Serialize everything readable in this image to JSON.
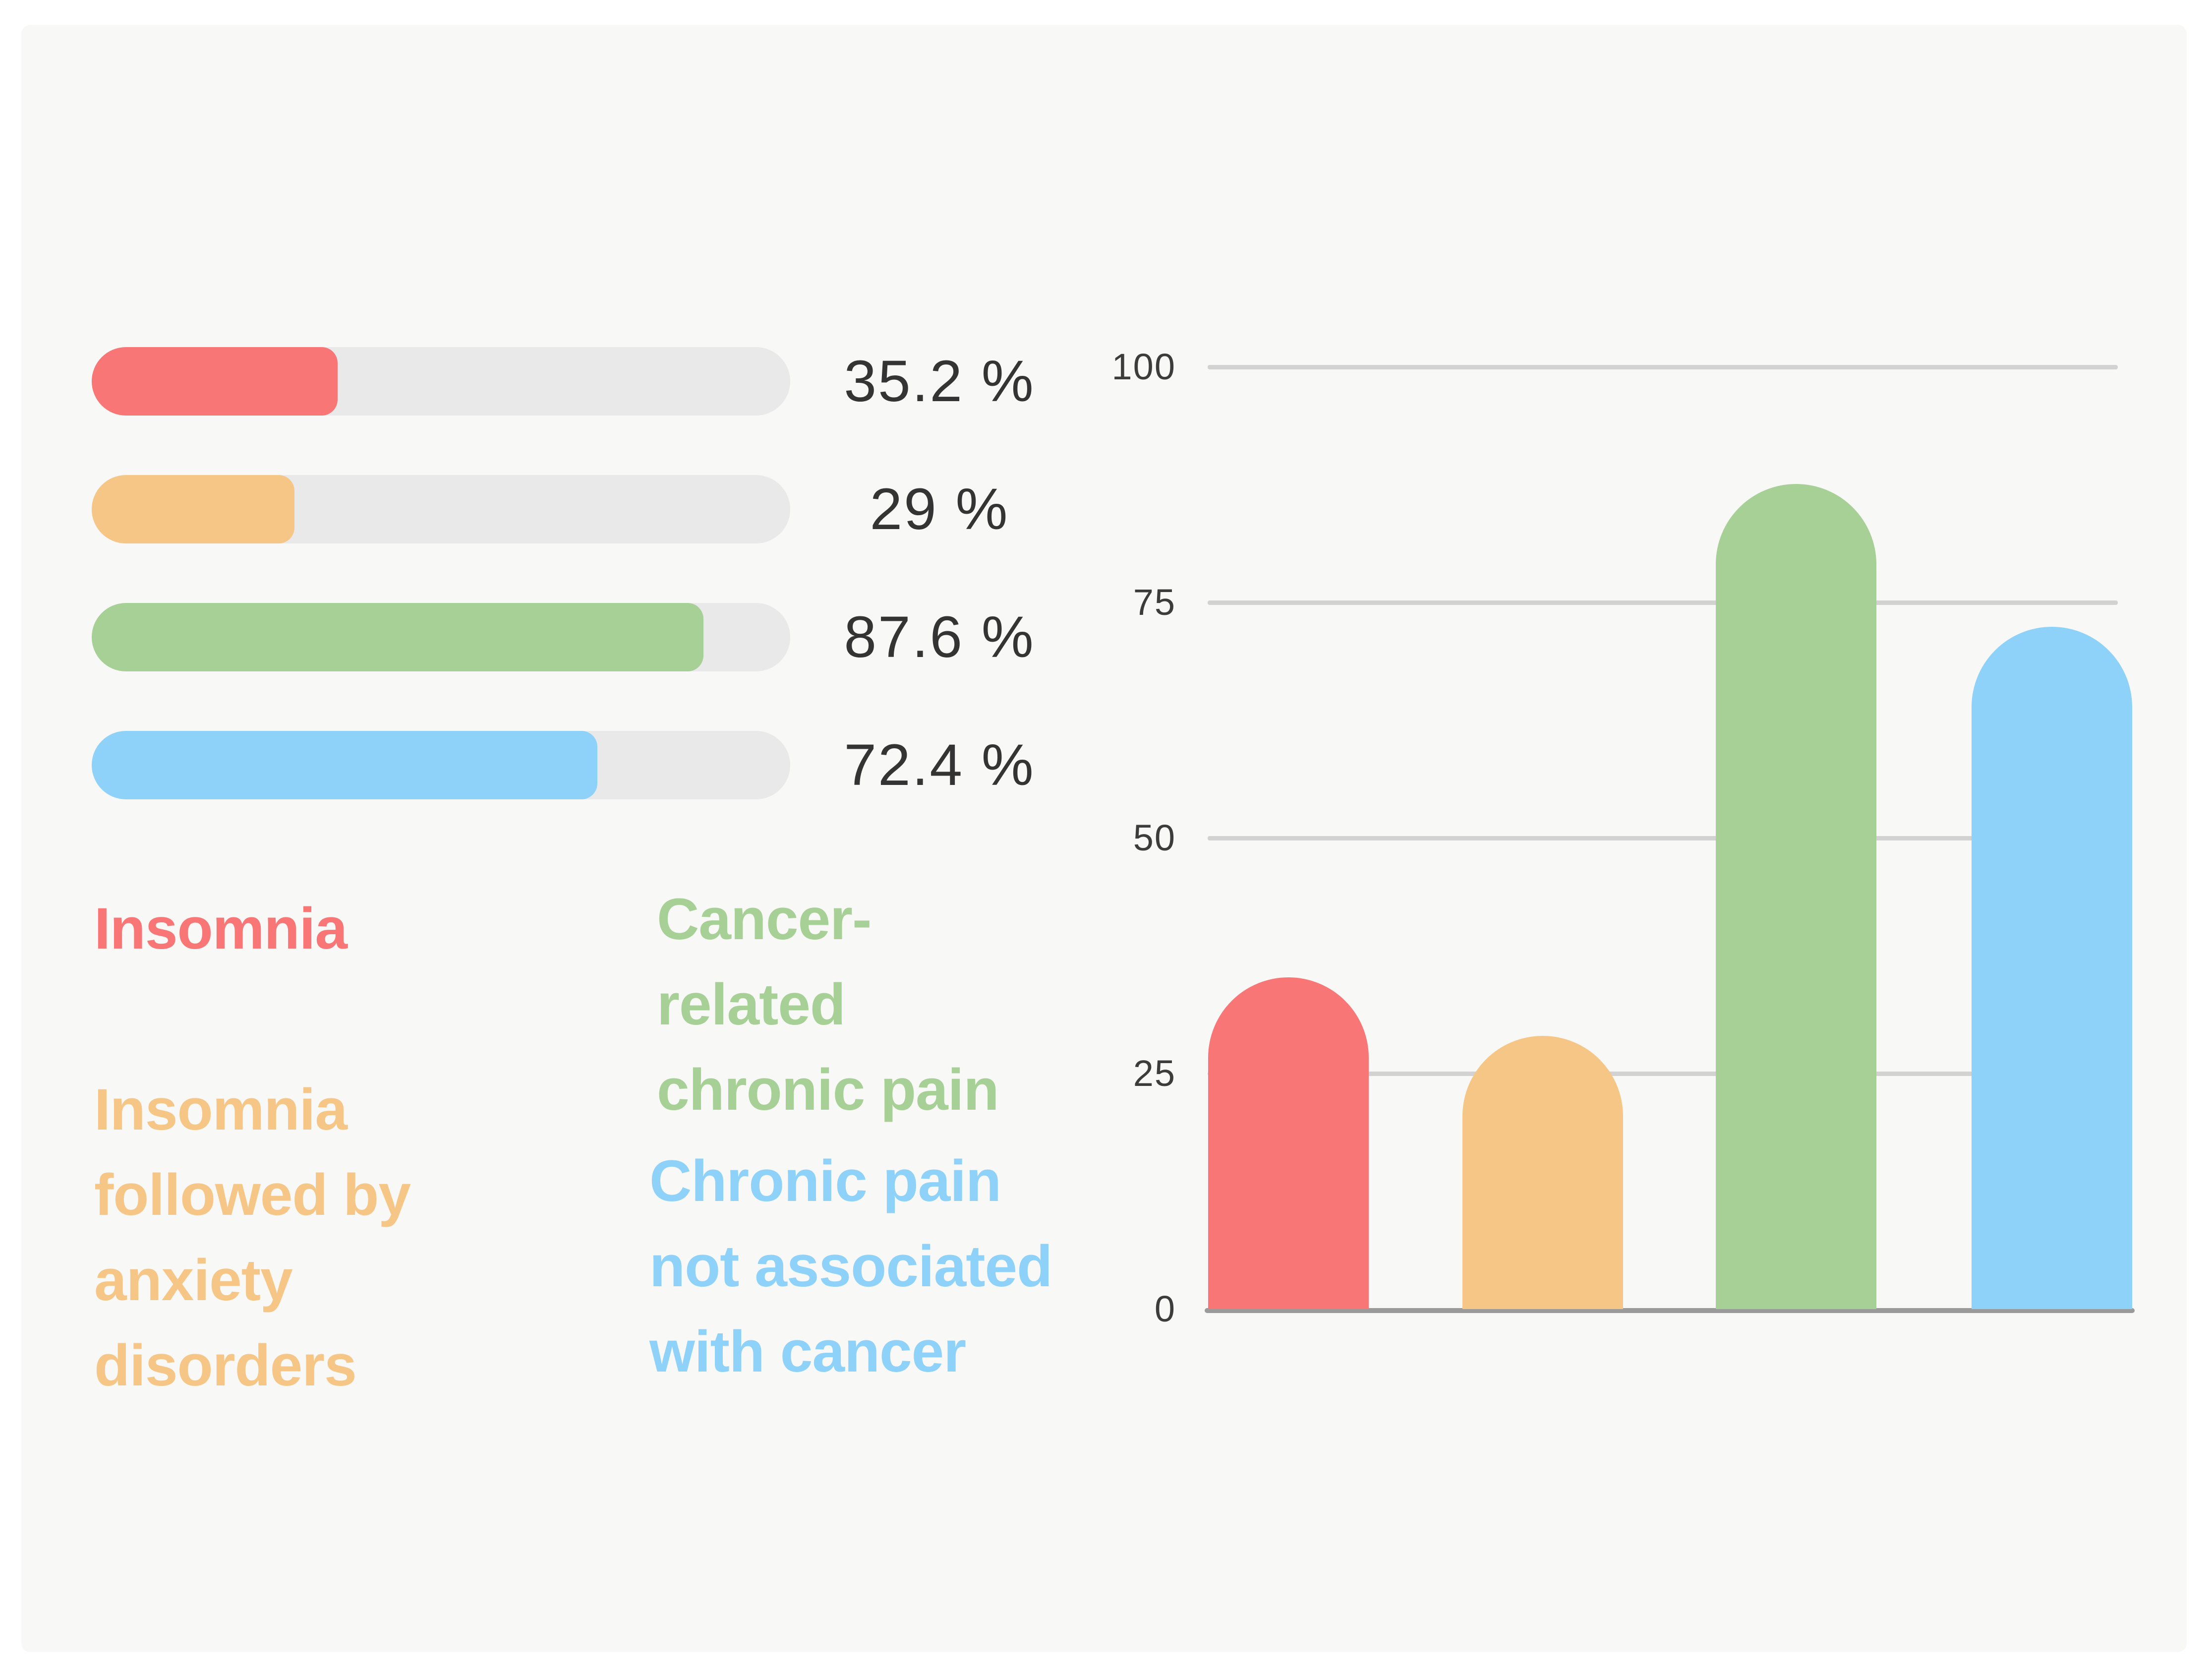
{
  "page": {
    "background_color": "#ffffff",
    "panel_color": "#f8f8f7",
    "track_color": "#e9e9e9",
    "gridline_color": "#d2d2d2",
    "axis_color": "#9a9a9a",
    "number_text_color": "#343434",
    "tick_text_color": "#3c3c3c"
  },
  "progress_chart": {
    "items": [
      {
        "id": "insomnia",
        "value": 35.2,
        "percent_label": "35.2 %",
        "color": "#f87676"
      },
      {
        "id": "insomnia-anxiety",
        "value": 29,
        "percent_label": "29 %",
        "color": "#f6c686"
      },
      {
        "id": "cancer-pain",
        "value": 87.6,
        "percent_label": "87.6 %",
        "color": "#a7d096"
      },
      {
        "id": "non-cancer-pain",
        "value": 72.4,
        "percent_label": "72.4 %",
        "color": "#8fd2f9"
      }
    ]
  },
  "legend": {
    "items": [
      {
        "id": "insomnia",
        "lines": [
          "Insomnia"
        ],
        "color": "#f87676"
      },
      {
        "id": "cancer-pain",
        "lines": [
          "Cancer-",
          "related",
          "chronic pain"
        ],
        "color": "#a7d096"
      },
      {
        "id": "insomnia-anxiety",
        "lines": [
          "Insomnia",
          "followed by",
          "anxiety",
          "disorders"
        ],
        "color": "#f6c686"
      },
      {
        "id": "non-cancer-pain",
        "lines": [
          "Chronic pain",
          "not associated",
          "with cancer"
        ],
        "color": "#8fd2f9"
      }
    ]
  },
  "chart_data": [
    {
      "type": "bar",
      "orientation": "horizontal",
      "categories": [
        "Insomnia",
        "Insomnia followed by anxiety disorders",
        "Cancer-related chronic pain",
        "Chronic pain not associated with cancer"
      ],
      "values": [
        35.2,
        29,
        87.6,
        72.4
      ],
      "data_labels": [
        "35.2 %",
        "29 %",
        "87.6 %",
        "72.4 %"
      ],
      "colors": [
        "#f87676",
        "#f6c686",
        "#a7d096",
        "#8fd2f9"
      ],
      "title": "",
      "xlabel": "",
      "ylabel": "",
      "xlim": [
        0,
        100
      ],
      "grid": false,
      "legend_position": "below-as-colored-text"
    },
    {
      "type": "bar",
      "orientation": "vertical",
      "categories": [
        "Insomnia",
        "Insomnia followed by anxiety disorders",
        "Cancer-related chronic pain",
        "Chronic pain not associated with cancer"
      ],
      "values": [
        35.2,
        29,
        87.6,
        72.4
      ],
      "colors": [
        "#f87676",
        "#f6c686",
        "#a7d096",
        "#8fd2f9"
      ],
      "title": "",
      "xlabel": "",
      "ylabel": "",
      "ylim": [
        0,
        100
      ],
      "y_ticks": [
        100,
        75,
        50,
        25,
        0
      ],
      "grid": true,
      "legend_position": "none",
      "bar_style": "rounded-top"
    }
  ]
}
